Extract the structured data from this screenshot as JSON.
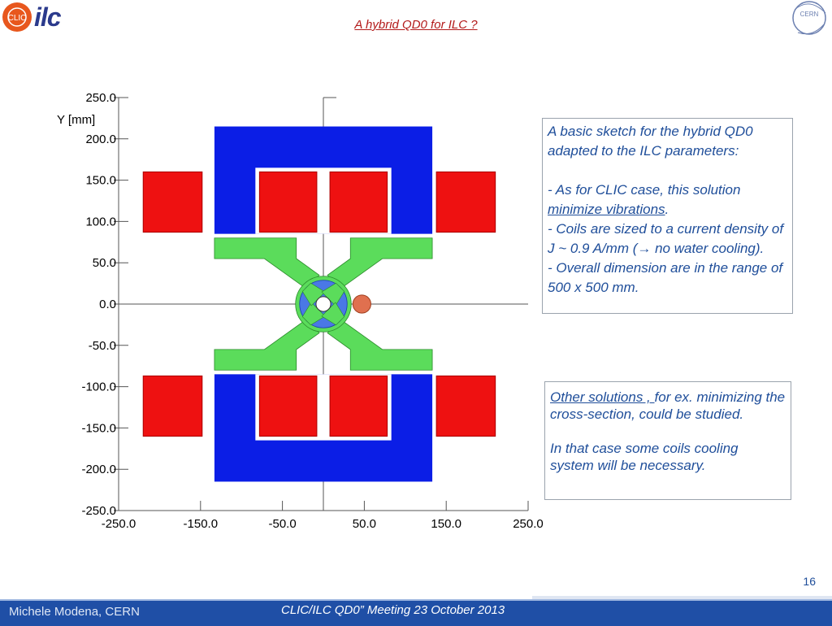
{
  "header": {
    "title": "A hybrid QD0 for ILC ?",
    "logo_left_text": "ilc",
    "logo_clic_text": "CLIC",
    "logo_right_text": "CERN"
  },
  "chart_data": {
    "type": "diagram",
    "ylabel": "Y [mm]",
    "x_ticks": [
      "-250.0",
      "-150.0",
      "-50.0",
      "50.0",
      "150.0",
      "250.0"
    ],
    "y_ticks": [
      "250.0",
      "200.0",
      "150.0",
      "100.0",
      "50.0",
      "0.0",
      "-50.0",
      "-100.0",
      "-150.0",
      "-200.0",
      "-250.0"
    ],
    "xlim": [
      -250,
      250
    ],
    "ylim": [
      -250,
      250
    ],
    "colors": {
      "yoke": "#0b1ee6",
      "coil": "#ee1111",
      "pole": "#5bdc5b",
      "quad": "#4a78e6",
      "beam2": "#e0704f"
    }
  },
  "box1": {
    "line1": "A basic sketch for the hybrid QD0 adapted to the ILC parameters:",
    "p2a": "- As for CLIC case, this solution ",
    "p2b": "minimize vibrations",
    "p2c": ".",
    "p3": "- Coils  are sized to a current density  of J ~ 0.9 A/mm (→ no water cooling).",
    "p4": "- Overall  dimension are in the range of 500 x 500 mm."
  },
  "box2": {
    "p1a": "Other solutions , ",
    "p1b": "for ex. minimizing the cross-section, could be studied.",
    "p2": "In that case some coils cooling system will be necessary."
  },
  "footer": {
    "page": "16",
    "author": "Michele Modena, CERN",
    "meeting": "CLIC/ILC QD0” Meeting 23 October 2013"
  }
}
